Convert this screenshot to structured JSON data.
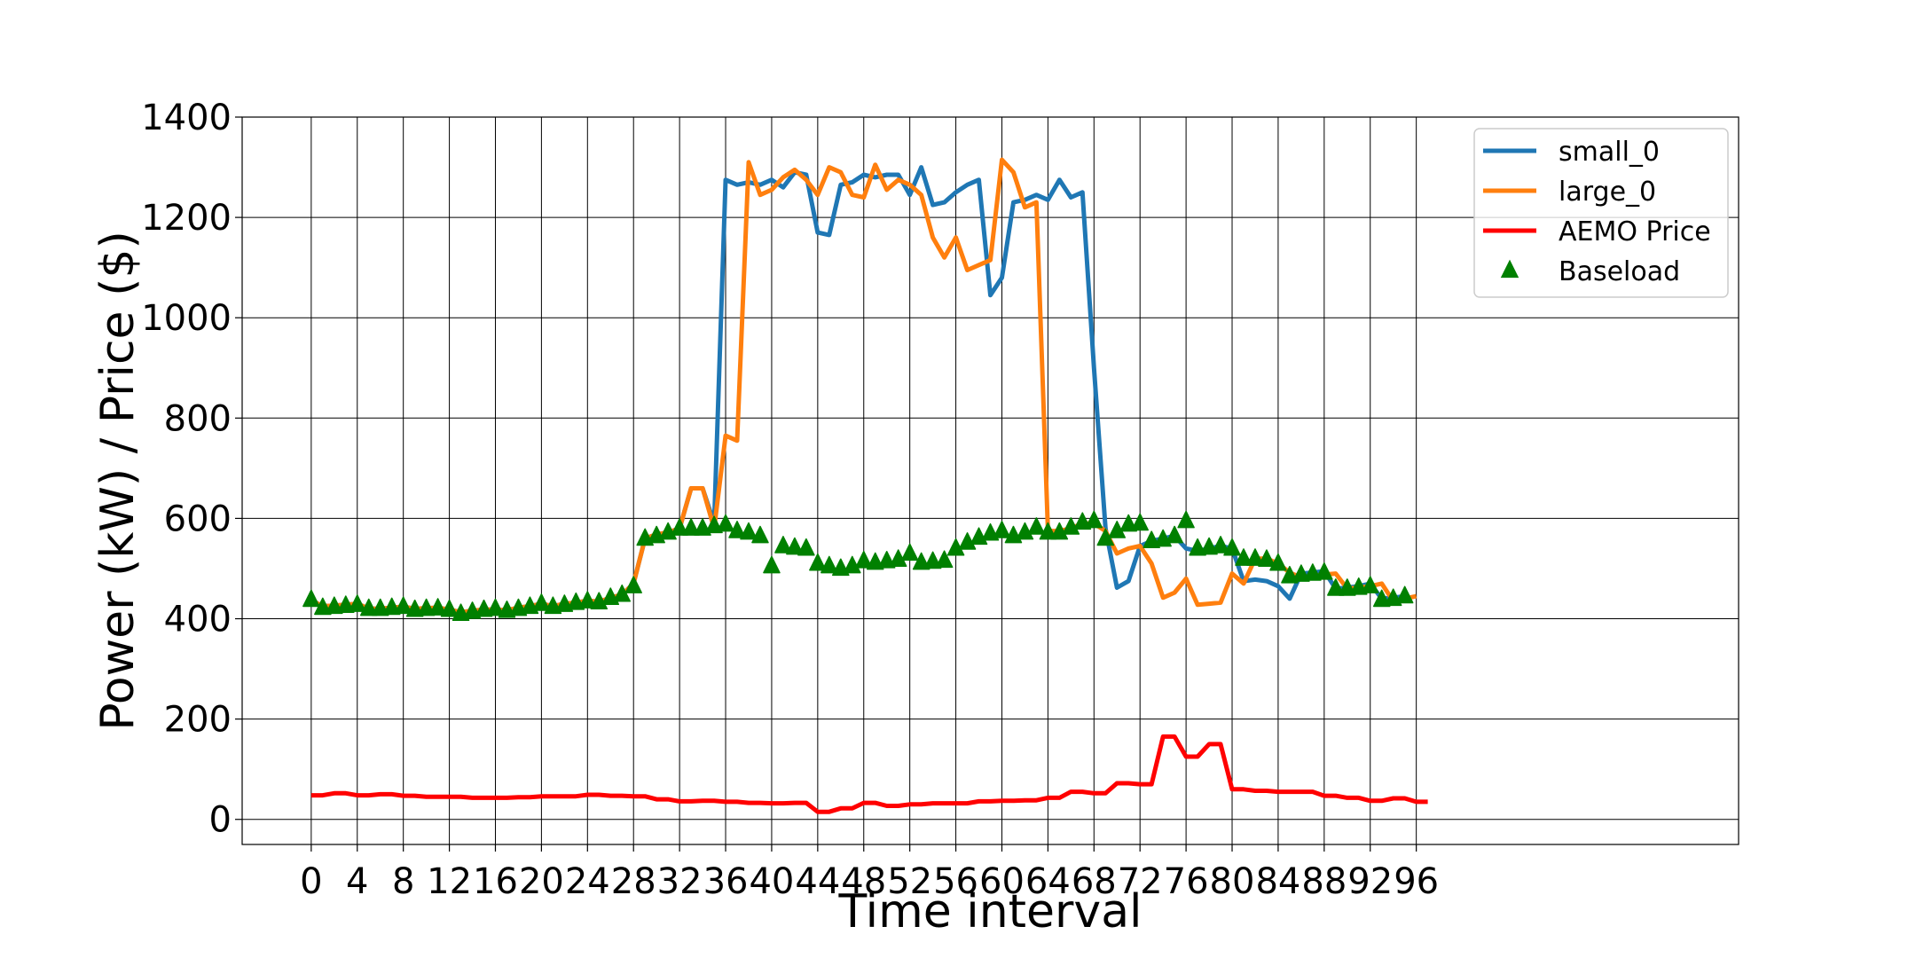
{
  "chart_data": {
    "type": "line",
    "title": "",
    "xlabel": "Time interval",
    "ylabel": "Power (kW) / Price ($)",
    "xlim": [
      -6,
      124
    ],
    "ylim": [
      -50,
      1400
    ],
    "xticks": [
      0,
      4,
      8,
      12,
      16,
      20,
      24,
      28,
      32,
      36,
      40,
      44,
      48,
      52,
      56,
      60,
      64,
      68,
      72,
      76,
      80,
      84,
      88,
      92,
      96
    ],
    "yticks": [
      0,
      200,
      400,
      600,
      800,
      1000,
      1200,
      1400
    ],
    "xtick_labels": [
      "0",
      "4",
      "8",
      "12",
      "16",
      "20",
      "24",
      "28",
      "32",
      "36",
      "40",
      "44",
      "48",
      "52",
      "56",
      "60",
      "64",
      "68",
      "72",
      "76",
      "80",
      "84",
      "88",
      "92",
      "96"
    ],
    "ytick_labels": [
      "0",
      "200",
      "400",
      "600",
      "800",
      "1000",
      "1200",
      "1400"
    ],
    "grid": true,
    "legend_position": "top-right",
    "series": [
      {
        "name": "small_0",
        "kind": "line",
        "color": "#1f77b4",
        "values": [
          437,
          425,
          426,
          428,
          430,
          420,
          420,
          422,
          424,
          420,
          421,
          422,
          418,
          413,
          416,
          418,
          418,
          417,
          422,
          425,
          430,
          425,
          430,
          432,
          436,
          434,
          442,
          448,
          470,
          560,
          568,
          572,
          580,
          660,
          660,
          590,
          1275,
          1265,
          1270,
          1265,
          1275,
          1260,
          1290,
          1285,
          1170,
          1165,
          1265,
          1270,
          1285,
          1280,
          1285,
          1285,
          1245,
          1300,
          1225,
          1230,
          1250,
          1265,
          1275,
          1045,
          1080,
          1230,
          1235,
          1245,
          1235,
          1275,
          1240,
          1250,
          900,
          580,
          462,
          475,
          545,
          555,
          560,
          565,
          540,
          535,
          540,
          545,
          540,
          475,
          478,
          475,
          465,
          440,
          490,
          492,
          495,
          460,
          462,
          465,
          470,
          440,
          442,
          445
        ]
      },
      {
        "name": "large_0",
        "kind": "line",
        "color": "#ff7f0e",
        "values": [
          437,
          425,
          426,
          428,
          430,
          420,
          420,
          422,
          424,
          420,
          421,
          422,
          418,
          413,
          416,
          418,
          418,
          417,
          422,
          425,
          430,
          425,
          430,
          432,
          436,
          434,
          442,
          448,
          470,
          560,
          568,
          572,
          580,
          660,
          660,
          580,
          765,
          755,
          1310,
          1245,
          1255,
          1280,
          1295,
          1275,
          1245,
          1300,
          1290,
          1245,
          1240,
          1305,
          1255,
          1275,
          1265,
          1245,
          1160,
          1120,
          1160,
          1095,
          1105,
          1115,
          1315,
          1290,
          1220,
          1230,
          575,
          575,
          580,
          590,
          590,
          575,
          530,
          540,
          545,
          510,
          442,
          452,
          480,
          428,
          430,
          432,
          490,
          470,
          520,
          520,
          510,
          492,
          482,
          485,
          488,
          490,
          460,
          462,
          465,
          470,
          435,
          440,
          445
        ]
      },
      {
        "name": "AEMO Price",
        "kind": "line",
        "color": "#ff0000",
        "values": [
          48,
          48,
          52,
          52,
          48,
          48,
          50,
          50,
          47,
          47,
          45,
          45,
          45,
          45,
          43,
          43,
          43,
          43,
          44,
          44,
          46,
          46,
          46,
          46,
          49,
          49,
          47,
          47,
          46,
          46,
          40,
          40,
          36,
          36,
          37,
          37,
          35,
          35,
          33,
          33,
          32,
          32,
          33,
          33,
          15,
          15,
          22,
          22,
          33,
          33,
          27,
          27,
          30,
          30,
          32,
          32,
          32,
          32,
          36,
          36,
          37,
          37,
          38,
          38,
          43,
          43,
          55,
          55,
          52,
          52,
          72,
          72,
          70,
          70,
          165,
          165,
          125,
          125,
          150,
          150,
          60,
          60,
          57,
          57,
          55,
          55,
          55,
          55,
          47,
          47,
          43,
          43,
          37,
          37,
          42,
          42,
          35,
          35
        ]
      },
      {
        "name": "Baseload",
        "kind": "scatter",
        "marker": "triangle",
        "color": "#008000",
        "values": [
          438,
          422,
          424,
          426,
          428,
          420,
          420,
          422,
          424,
          418,
          420,
          421,
          418,
          410,
          414,
          418,
          420,
          416,
          420,
          424,
          430,
          424,
          428,
          432,
          435,
          433,
          442,
          448,
          465,
          560,
          565,
          572,
          580,
          580,
          580,
          585,
          588,
          575,
          572,
          565,
          505,
          545,
          542,
          540,
          510,
          505,
          500,
          505,
          515,
          512,
          515,
          518,
          530,
          512,
          514,
          516,
          540,
          552,
          562,
          570,
          575,
          565,
          572,
          582,
          572,
          572,
          582,
          592,
          595,
          560,
          575,
          588,
          590,
          555,
          558,
          565,
          595,
          540,
          542,
          545,
          540,
          520,
          520,
          518,
          510,
          485,
          488,
          490,
          492,
          460,
          460,
          462,
          465,
          438,
          440,
          445
        ]
      }
    ]
  }
}
